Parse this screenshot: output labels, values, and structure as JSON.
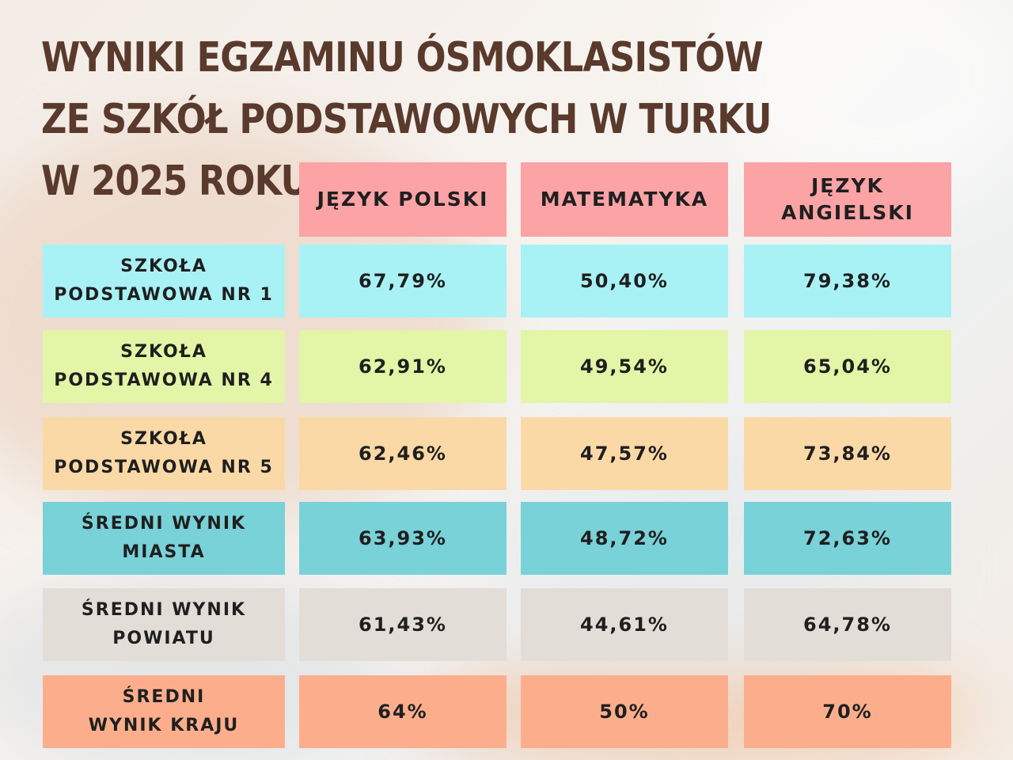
{
  "title_lines": [
    "WYNIKI EGZAMINU ÓSMOKLASISTÓW",
    "ZE SZKÓŁ PODSTAWOWYCH W TURKU",
    "W 2025 ROKU"
  ],
  "colors": {
    "header": "#fba3a5",
    "sp1": "#a8f2f6",
    "sp4": "#e3f5a6",
    "sp5": "#fbd9a7",
    "miasto": "#78d2d8",
    "powiat": "#e3ddd7",
    "kraj": "#fcae8c"
  },
  "chart_data": {
    "type": "table",
    "title": "WYNIKI EGZAMINU ÓSMOKLASISTÓW ZE SZKÓŁ PODSTAWOWYCH W TURKU W 2025 ROKU",
    "columns": [
      {
        "key": "polski",
        "label": "JĘZYK POLSKI"
      },
      {
        "key": "matematyka",
        "label": "MATEMATYKA"
      },
      {
        "key": "angielski",
        "label": "JĘZYK ANGIELSKI"
      }
    ],
    "rows": [
      {
        "label": "SZKOŁA PODSTAWOWA NR 1",
        "color": "#a8f2f6",
        "values": [
          "67,79%",
          "50,40%",
          "79,38%"
        ]
      },
      {
        "label": "SZKOŁA PODSTAWOWA NR 4",
        "color": "#e3f5a6",
        "values": [
          "62,91%",
          "49,54%",
          "65,04%"
        ]
      },
      {
        "label": "SZKOŁA PODSTAWOWA NR 5",
        "color": "#fbd9a7",
        "values": [
          "62,46%",
          "47,57%",
          "73,84%"
        ]
      },
      {
        "label": "ŚREDNI WYNIK MIASTA",
        "color": "#78d2d8",
        "values": [
          "63,93%",
          "48,72%",
          "72,63%"
        ]
      },
      {
        "label": "ŚREDNI WYNIK POWIATU",
        "color": "#e3ddd7",
        "values": [
          "61,43%",
          "44,61%",
          "64,78%"
        ]
      },
      {
        "label": "ŚREDNI WYNIK KRAJU",
        "color": "#fcae8c",
        "values": [
          "64%",
          "50%",
          "70%"
        ]
      }
    ]
  }
}
